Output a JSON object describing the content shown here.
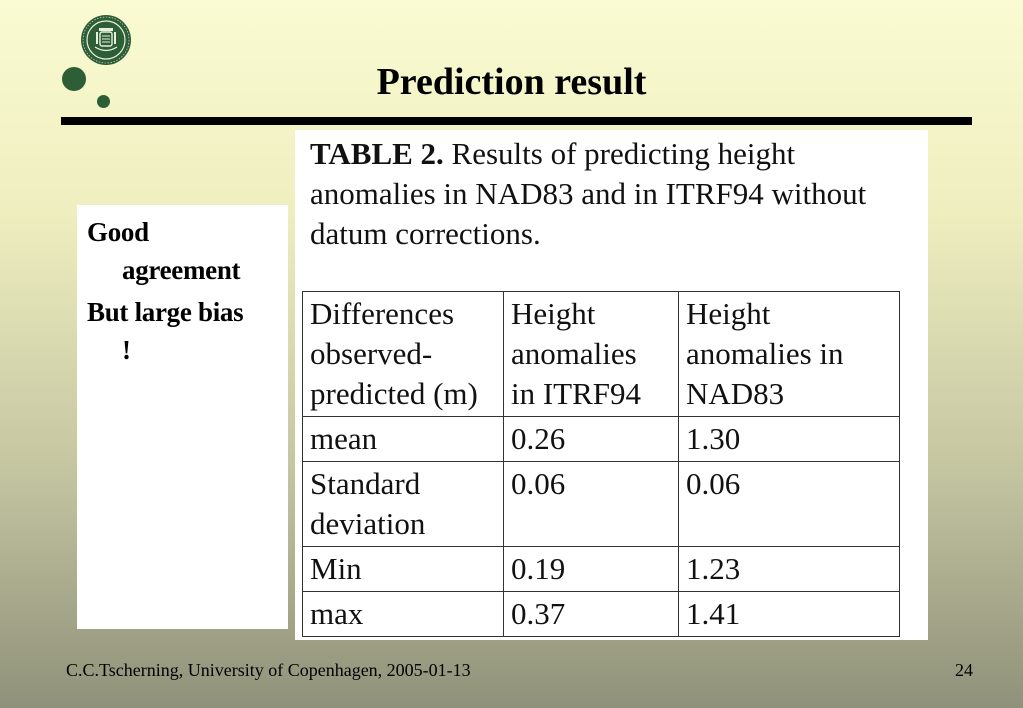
{
  "slide": {
    "title": "Prediction result",
    "notes": [
      {
        "line1": "Good",
        "line2": "agreement"
      },
      {
        "line1": "But large bias",
        "line2": "!"
      }
    ]
  },
  "table_figure": {
    "caption_label": "TABLE 2.",
    "caption_text": "Results of predicting height anomalies in NAD83 and in ITRF94 without datum corrections.",
    "headers": [
      [
        "Differences",
        "observed-",
        "predicted (m)"
      ],
      [
        "Height",
        "anomalies",
        "in ITRF94"
      ],
      [
        "Height",
        "anomalies in",
        "NAD83"
      ]
    ],
    "rows": [
      {
        "label": [
          "mean"
        ],
        "itrf94": "0.26",
        "nad83": "1.30"
      },
      {
        "label": [
          "Standard",
          "deviation"
        ],
        "itrf94": "0.06",
        "nad83": "0.06"
      },
      {
        "label": [
          "Min"
        ],
        "itrf94": "0.19",
        "nad83": "1.23"
      },
      {
        "label": [
          "max"
        ],
        "itrf94": "0.37",
        "nad83": "1.41"
      }
    ]
  },
  "footer": {
    "text": "C.C.Tscherning,  University of Copenhagen, 2005-01-13",
    "page_number": "24"
  },
  "colors": {
    "accent_green": "#2e5e35"
  }
}
